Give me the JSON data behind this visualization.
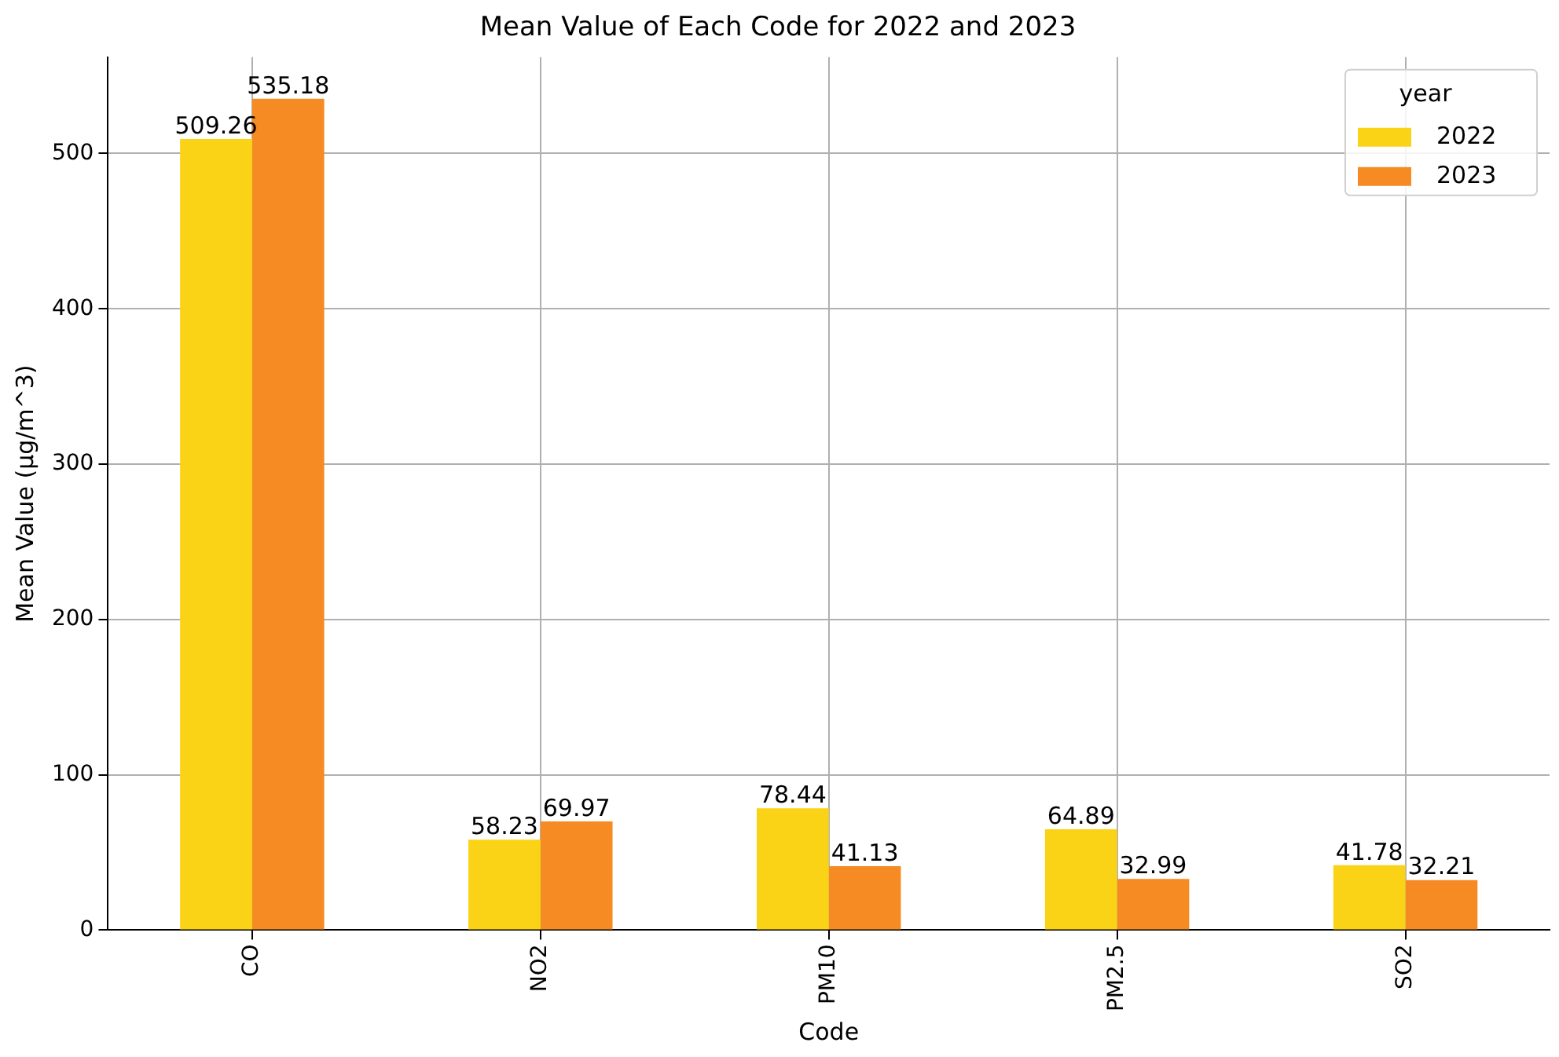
{
  "chart_data": {
    "type": "bar",
    "title": "Mean Value of Each Code for 2022 and 2023",
    "xlabel": "Code",
    "ylabel": "Mean Value (µg/m^3)",
    "legend_title": "year",
    "categories": [
      "CO",
      "NO2",
      "PM10",
      "PM2.5",
      "SO2"
    ],
    "series": [
      {
        "name": "2022",
        "color": "#fbd316",
        "values": [
          509.26,
          58.23,
          78.44,
          64.89,
          41.78
        ]
      },
      {
        "name": "2023",
        "color": "#f58b22",
        "values": [
          535.18,
          69.97,
          41.13,
          32.99,
          32.21
        ]
      }
    ],
    "ylim": [
      0,
      562
    ],
    "yticks": [
      0,
      100,
      200,
      300,
      400,
      500
    ],
    "grid": true,
    "legend": "top right",
    "data_labels": true
  }
}
